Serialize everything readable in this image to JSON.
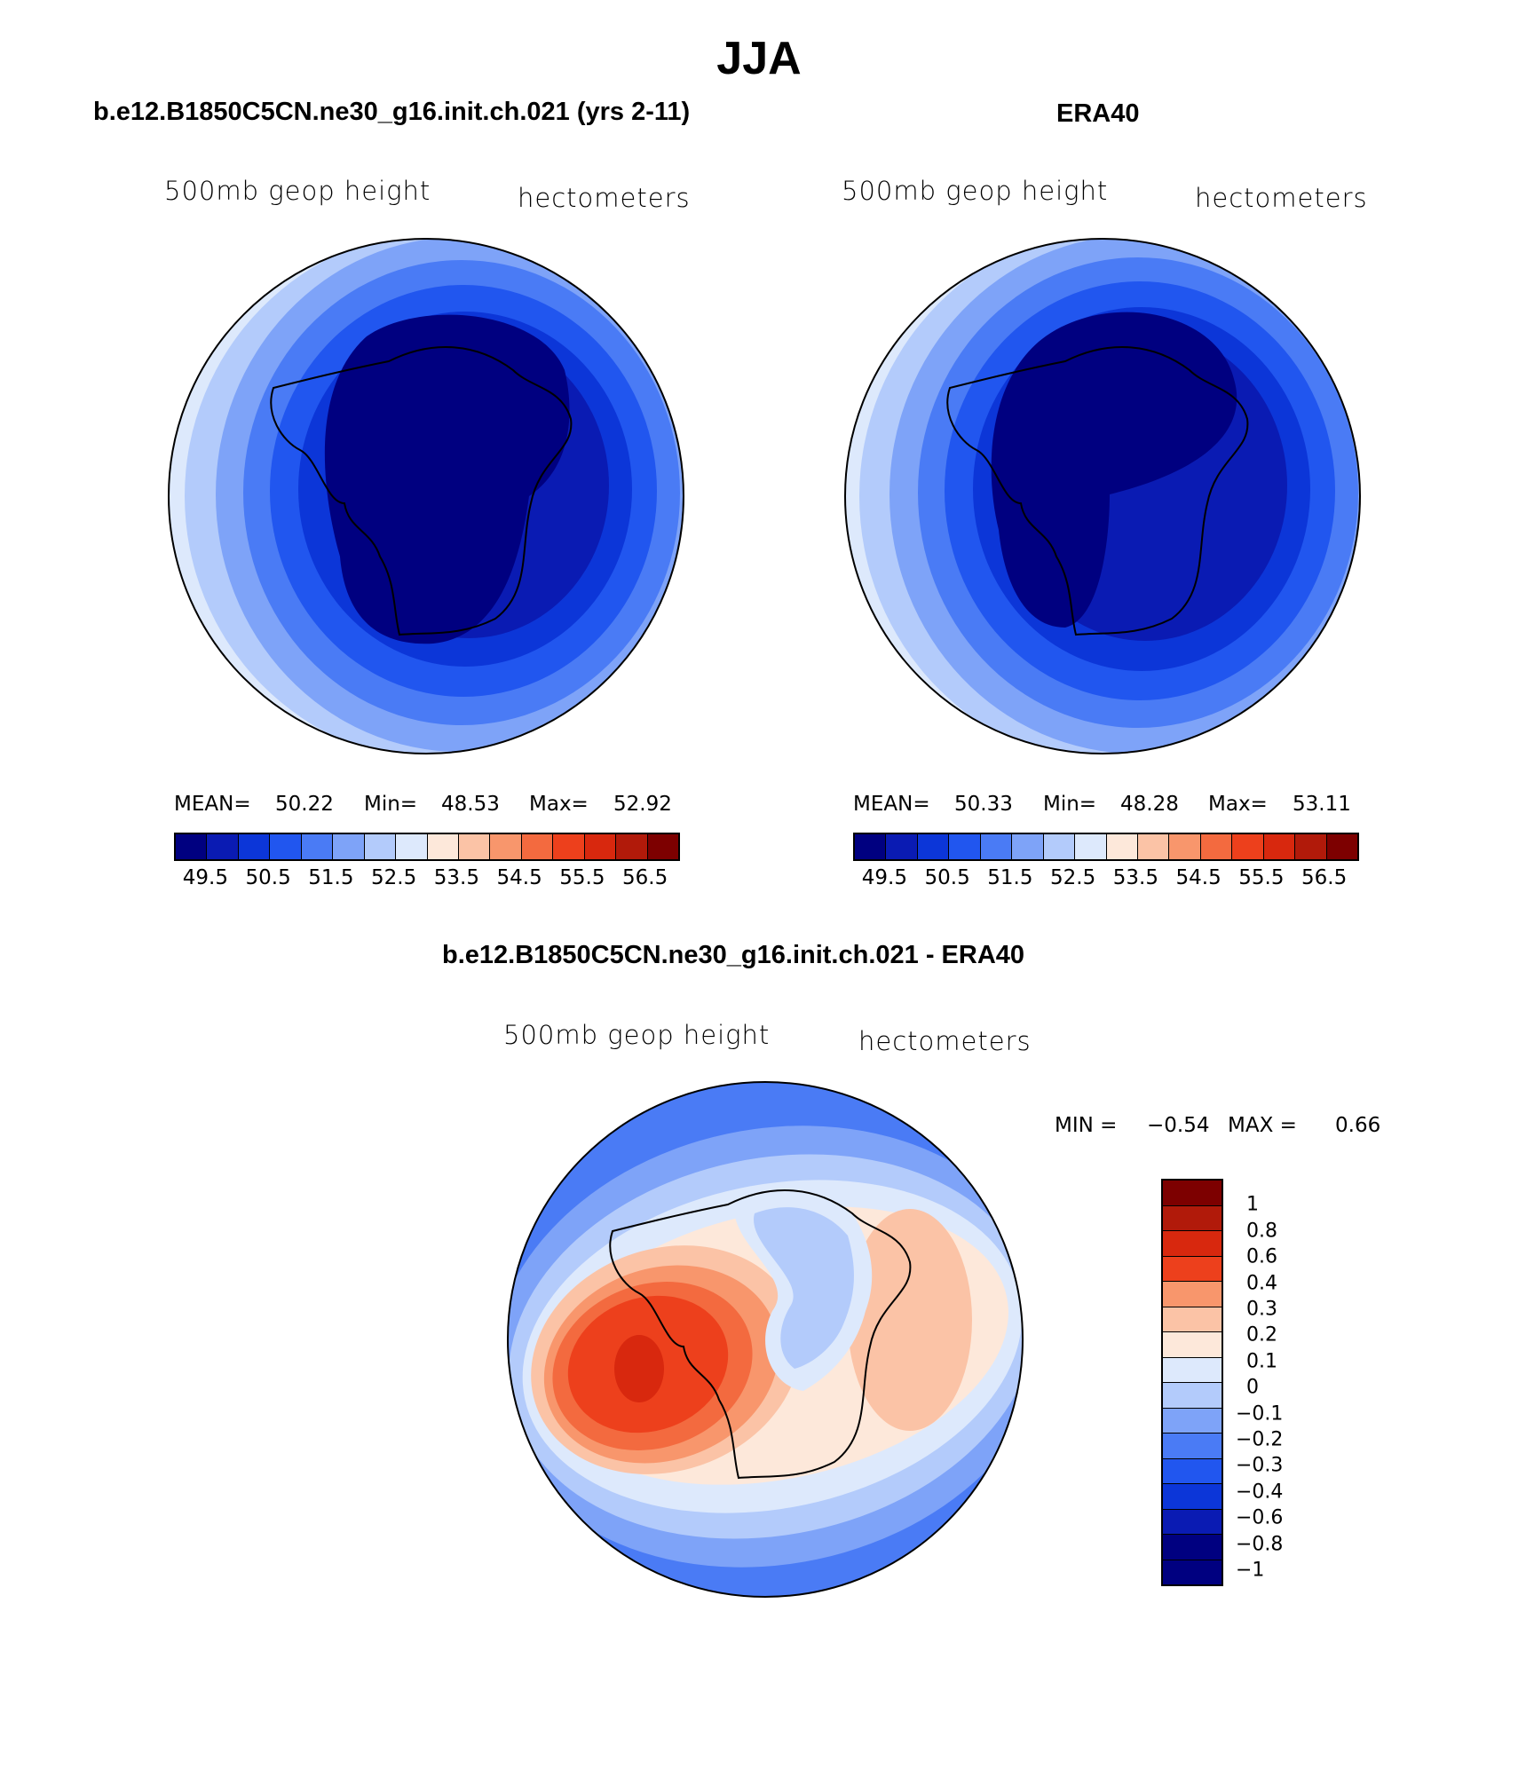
{
  "title": "JJA",
  "panels": {
    "model": {
      "title": "b.e12.B1850C5CN.ne30_g16.init.ch.021 (yrs 2-11)",
      "left_label": "500mb geop height",
      "right_label": "hectometers",
      "mean_label": "MEAN=",
      "mean_value": "50.22",
      "min_label": "Min=",
      "min_value": "48.53",
      "max_label": "Max=",
      "max_value": "52.92"
    },
    "obs": {
      "title": "ERA40",
      "left_label": "500mb geop height",
      "right_label": "hectometers",
      "mean_label": "MEAN=",
      "mean_value": "50.33",
      "min_label": "Min=",
      "min_value": "48.28",
      "max_label": "Max=",
      "max_value": "53.11"
    },
    "diff": {
      "title": "b.e12.B1850C5CN.ne30_g16.init.ch.021 - ERA40",
      "left_label": "500mb geop height",
      "right_label": "hectometers",
      "min_label": "MIN =",
      "min_value": "−0.54",
      "max_label": "MAX =",
      "max_value": "0.66"
    }
  },
  "chart_data": [
    {
      "type": "heatmap",
      "projection": "south polar stereographic",
      "title": "b.e12.B1850C5CN.ne30_g16.init.ch.021 (yrs 2-11)",
      "variable": "500mb geop height",
      "units": "hectometers",
      "mean": 50.22,
      "min": 48.53,
      "max": 52.92,
      "colorbar_labels": [
        "49.5",
        "50.5",
        "51.5",
        "52.5",
        "53.5",
        "54.5",
        "55.5",
        "56.5"
      ],
      "colors": [
        "#000080",
        "#0a1bb3",
        "#0c36d8",
        "#2156ef",
        "#4a7bf5",
        "#7ea3f8",
        "#b3cbfb",
        "#dde9fc",
        "#fde8da",
        "#fbc3a6",
        "#f8966c",
        "#f36a3f",
        "#ed401c",
        "#d8280e",
        "#b11a0a",
        "#7d0000"
      ],
      "contour_levels_shown": [
        49.5,
        50,
        50.5,
        51,
        51.5,
        52,
        52.5,
        53
      ]
    },
    {
      "type": "heatmap",
      "projection": "south polar stereographic",
      "title": "ERA40",
      "variable": "500mb geop height",
      "units": "hectometers",
      "mean": 50.33,
      "min": 48.28,
      "max": 53.11,
      "colorbar_labels": [
        "49.5",
        "50.5",
        "51.5",
        "52.5",
        "53.5",
        "54.5",
        "55.5",
        "56.5"
      ],
      "colors": [
        "#000080",
        "#0a1bb3",
        "#0c36d8",
        "#2156ef",
        "#4a7bf5",
        "#7ea3f8",
        "#b3cbfb",
        "#dde9fc",
        "#fde8da",
        "#fbc3a6",
        "#f8966c",
        "#f36a3f",
        "#ed401c",
        "#d8280e",
        "#b11a0a",
        "#7d0000"
      ],
      "contour_levels_shown": [
        49.5,
        50,
        50.5,
        51,
        51.5,
        52,
        52.5,
        53
      ]
    },
    {
      "type": "heatmap",
      "projection": "south polar stereographic",
      "title": "b.e12.B1850C5CN.ne30_g16.init.ch.021 - ERA40",
      "variable": "500mb geop height",
      "units": "hectometers",
      "min": -0.54,
      "max": 0.66,
      "colorbar_labels": [
        "1",
        "0.8",
        "0.6",
        "0.4",
        "0.3",
        "0.2",
        "0.1",
        "0",
        "−0.1",
        "−0.2",
        "−0.3",
        "−0.4",
        "−0.6",
        "−0.8",
        "−1"
      ],
      "colors": [
        "#7d0000",
        "#b11a0a",
        "#d8280e",
        "#ed401c",
        "#f8966c",
        "#fbc3a6",
        "#fde8da",
        "#dde9fc",
        "#b3cbfb",
        "#7ea3f8",
        "#4a7bf5",
        "#2156ef",
        "#0c36d8",
        "#0a1bb3",
        "#000080",
        "#ffffff"
      ]
    }
  ]
}
